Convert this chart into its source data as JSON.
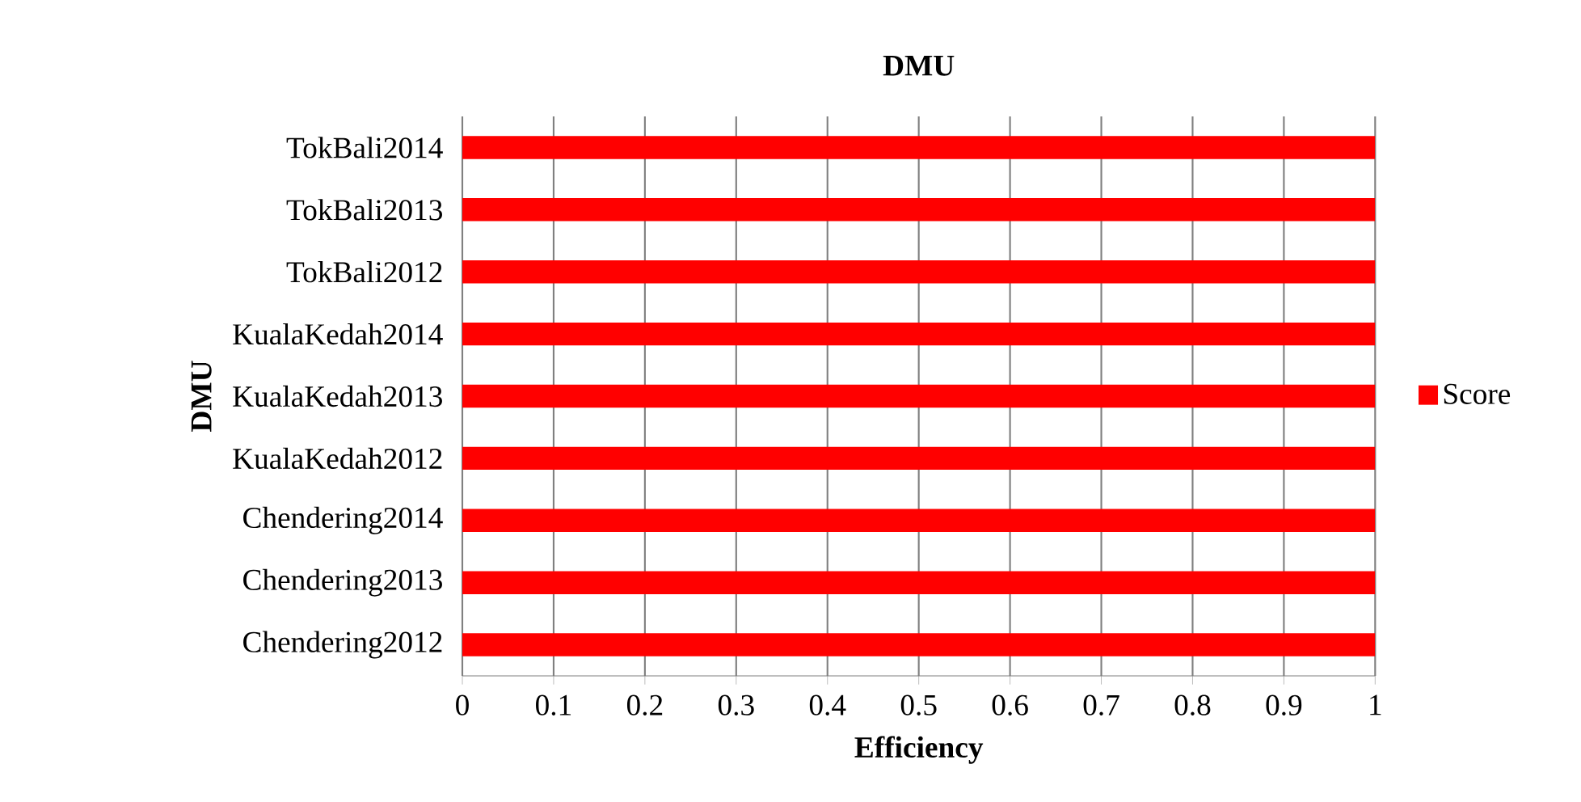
{
  "chart_data": {
    "type": "bar",
    "orientation": "horizontal",
    "title": "DMU",
    "xlabel": "Efficiency",
    "ylabel": "DMU",
    "categories": [
      "TokBali2014",
      "TokBali2013",
      "TokBali2012",
      "KualaKedah2014",
      "KualaKedah2013",
      "KualaKedah2012",
      "Chendering2014",
      "Chendering2013",
      "Chendering2012"
    ],
    "series": [
      {
        "name": "Score",
        "color": "#ff0000",
        "values": [
          1,
          1,
          1,
          1,
          1,
          1,
          1,
          1,
          1
        ]
      }
    ],
    "xlim": [
      0,
      1
    ],
    "xticks": [
      0,
      0.1,
      0.2,
      0.3,
      0.4,
      0.5,
      0.6,
      0.7,
      0.8,
      0.9,
      1
    ],
    "grid": "x",
    "legend": "right"
  }
}
